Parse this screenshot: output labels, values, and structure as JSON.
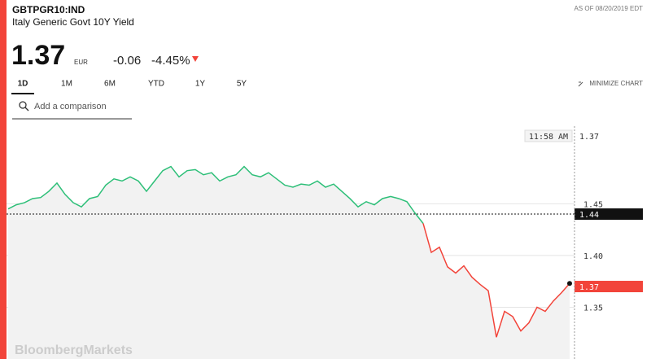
{
  "header": {
    "ticker": "GBTPGR10:IND",
    "name": "Italy Generic Govt 10Y Yield",
    "as_of": "AS OF 08/20/2019 EDT",
    "price": "1.37",
    "currency": "EUR",
    "change": "-0.06",
    "change_percent": "-4.45%",
    "tabs": [
      "1D",
      "1M",
      "6M",
      "YTD",
      "1Y",
      "5Y"
    ],
    "minimize": "MINIMIZE CHART",
    "search_placeholder": "Add a comparison",
    "brand": "BloombergMarkets"
  },
  "chart_data": {
    "type": "line",
    "categories": [
      null,
      null,
      null,
      null,
      null,
      null,
      null,
      null,
      null,
      null,
      null,
      null,
      null,
      null,
      null,
      null,
      null,
      null,
      null,
      null,
      null,
      null,
      null,
      null,
      null,
      null,
      null,
      null,
      null,
      null,
      null,
      null,
      null,
      null,
      null,
      null,
      null,
      null,
      null,
      null,
      null,
      null,
      null,
      null,
      null,
      null,
      null,
      null,
      null,
      null,
      null,
      null,
      null,
      null,
      null,
      null,
      null,
      null,
      null,
      null,
      null,
      null,
      null,
      null,
      null,
      null,
      null,
      null,
      null,
      null
    ],
    "series": [
      {
        "values": [
          1.445,
          1.449,
          1.451,
          1.455,
          1.456,
          1.462,
          1.47,
          1.459,
          1.451,
          1.447,
          1.455,
          1.457,
          1.468,
          1.474,
          1.472,
          1.476,
          1.472,
          1.462,
          1.472,
          1.482,
          1.486,
          1.476,
          1.482,
          1.483,
          1.478,
          1.48,
          1.472,
          1.476,
          1.478,
          1.486,
          1.478,
          1.476,
          1.48,
          1.474,
          1.468,
          1.466,
          1.469,
          1.468,
          1.472,
          1.466,
          1.469,
          1.462,
          1.455,
          1.447,
          1.452,
          1.449,
          1.455,
          1.457,
          1.455,
          1.452,
          1.441,
          1.431,
          1.403,
          1.408,
          1.389,
          1.383,
          1.39,
          1.379,
          1.372,
          1.366,
          1.321,
          1.346,
          1.341,
          1.327,
          1.335,
          1.35,
          1.346,
          1.356,
          1.364,
          1.373
        ]
      }
    ],
    "colors": {
      "above": "#2dbf78",
      "below": "#f2443a",
      "area": "#f2f2f2"
    },
    "previous_close": 1.44,
    "last_value": 1.37,
    "crosshair": {
      "time": "11:58 AM",
      "value": 1.37
    },
    "ylim": [
      1.3,
      1.525
    ],
    "yticks": [
      1.45,
      {
        "value": 1.4,
        "label": "1.40"
      },
      1.35
    ],
    "grid": true
  }
}
